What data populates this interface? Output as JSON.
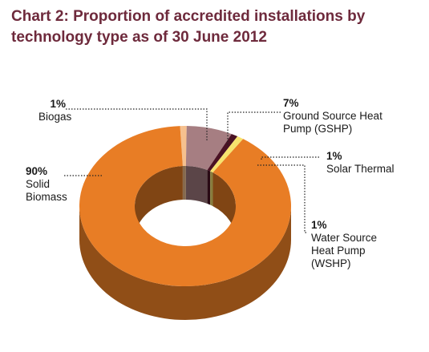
{
  "chart_data": {
    "type": "pie",
    "title": "Chart 2: Proportion of accredited installations by technology type as of 30 June 2012",
    "slices": [
      {
        "name": "Solid\nBiomass",
        "value": 90,
        "label": "90%",
        "color": "#e87d25"
      },
      {
        "name": "Biogas",
        "value": 1,
        "label": "1%",
        "color": "#f6c08e"
      },
      {
        "name": "Ground Source Heat\nPump (GSHP)",
        "value": 7,
        "label": "7%",
        "color": "#a67e82"
      },
      {
        "name": "Water Source\nHeat Pump\n(WSHP)",
        "value": 1,
        "label": "1%",
        "color": "#4a1224"
      },
      {
        "name": "Solar Thermal",
        "value": 1,
        "label": "1%",
        "color": "#f7e36e"
      }
    ]
  }
}
